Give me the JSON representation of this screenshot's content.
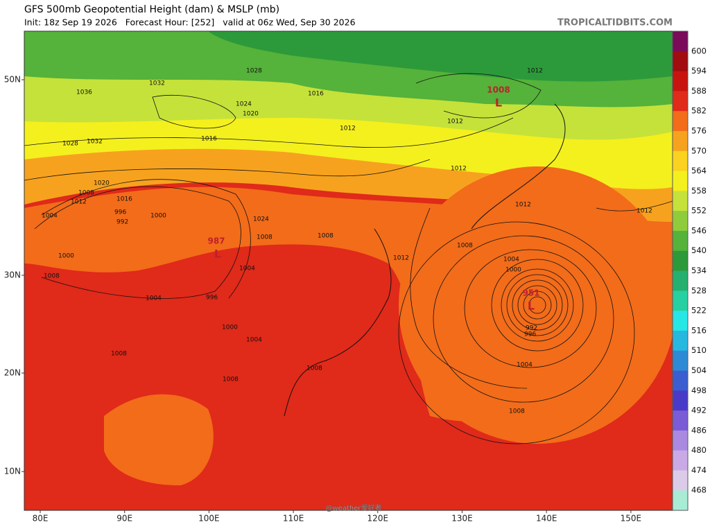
{
  "header": {
    "title": "GFS 500mb Geopotential Height (dam) & MSLP (mb)",
    "subtitle": "Init: 18z Sep 19 2026   Forecast Hour: [252]   valid at 06z Wed, Sep 30 2026",
    "site": "TROPICALTIDBITS.COM"
  },
  "map": {
    "lat_labels": [
      "50N",
      "30N",
      "20N",
      "10N"
    ],
    "lon_labels": [
      "80E",
      "90E",
      "100E",
      "110E",
      "120E",
      "130E",
      "140E",
      "150E"
    ]
  },
  "lows": [
    {
      "pressure": "1008",
      "symbol": "L"
    },
    {
      "pressure": "987",
      "symbol": "L"
    },
    {
      "pressure": "951",
      "symbol": "L"
    }
  ],
  "contour_labels": [
    "1036",
    "1032",
    "1028",
    "1028",
    "1032",
    "1024",
    "1020",
    "1016",
    "1016",
    "1012",
    "1012",
    "1012",
    "1012",
    "1012",
    "1012",
    "1012",
    "1024",
    "1020",
    "1008",
    "1016",
    "1012",
    "1004",
    "996",
    "992",
    "1000",
    "1008",
    "1008",
    "1008",
    "1000",
    "1008",
    "1004",
    "1004",
    "996",
    "1000",
    "1004",
    "1008",
    "1008",
    "1008",
    "1004",
    "1000",
    "992",
    "996",
    "1004",
    "1008",
    "1008"
  ],
  "colorbar": {
    "labels": [
      "600",
      "594",
      "588",
      "582",
      "576",
      "570",
      "564",
      "558",
      "552",
      "546",
      "540",
      "534",
      "528",
      "522",
      "516",
      "510",
      "504",
      "498",
      "492",
      "486",
      "480",
      "474",
      "468"
    ]
  },
  "watermark": "@weather爱好者"
}
